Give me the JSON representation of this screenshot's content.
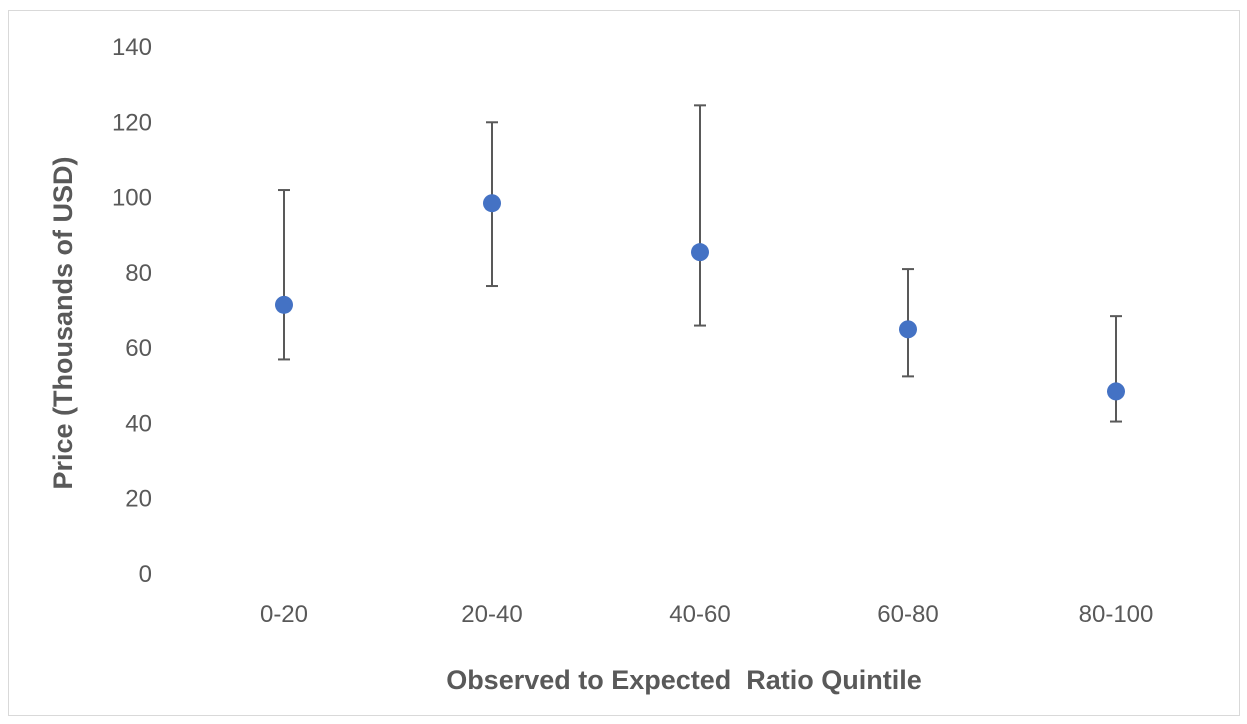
{
  "chart_data": {
    "type": "scatter",
    "title": "",
    "xlabel": "Observed to Expected  Ratio Quintile",
    "ylabel": "Price (Thousands of USD)",
    "ylim": [
      0,
      140
    ],
    "yticks": [
      0,
      20,
      40,
      60,
      80,
      100,
      120,
      140
    ],
    "grid": false,
    "legend": "none",
    "categories": [
      "0-20",
      "20-40",
      "40-60",
      "60-80",
      "80-100"
    ],
    "series": [
      {
        "values": [
          71.5,
          98.5,
          85.5,
          65,
          48.5
        ],
        "error_low": [
          57,
          76.5,
          66,
          52.5,
          40.5
        ],
        "error_high": [
          102,
          120,
          124.5,
          81,
          68.5
        ]
      }
    ],
    "colors": {
      "marker": "#4472c4",
      "errorbar": "#595959",
      "text": "#595959"
    }
  }
}
